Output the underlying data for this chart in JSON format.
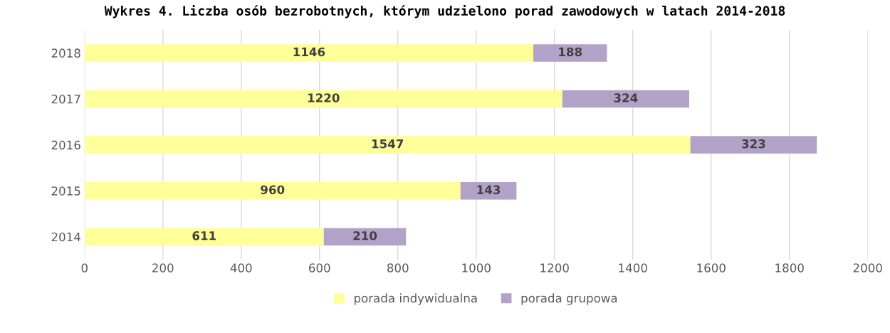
{
  "chart_data": {
    "type": "bar",
    "orientation": "horizontal",
    "stacked": true,
    "title": "Wykres 4. Liczba osób bezrobotnych, którym udzielono porad zawodowych w latach 2014-2018",
    "categories": [
      "2018",
      "2017",
      "2016",
      "2015",
      "2014"
    ],
    "series": [
      {
        "name": "porada indywidualna",
        "color": "#ffff99",
        "values": [
          1146,
          1220,
          1547,
          960,
          611
        ]
      },
      {
        "name": "porada grupowa",
        "color": "#b3a2c7",
        "values": [
          188,
          324,
          323,
          143,
          210
        ]
      }
    ],
    "xlim": [
      0,
      2000
    ],
    "xticks": [
      0,
      200,
      400,
      600,
      800,
      1000,
      1200,
      1400,
      1600,
      1800,
      2000
    ],
    "grid": "x",
    "legend": "bottom",
    "data_labels": true
  }
}
